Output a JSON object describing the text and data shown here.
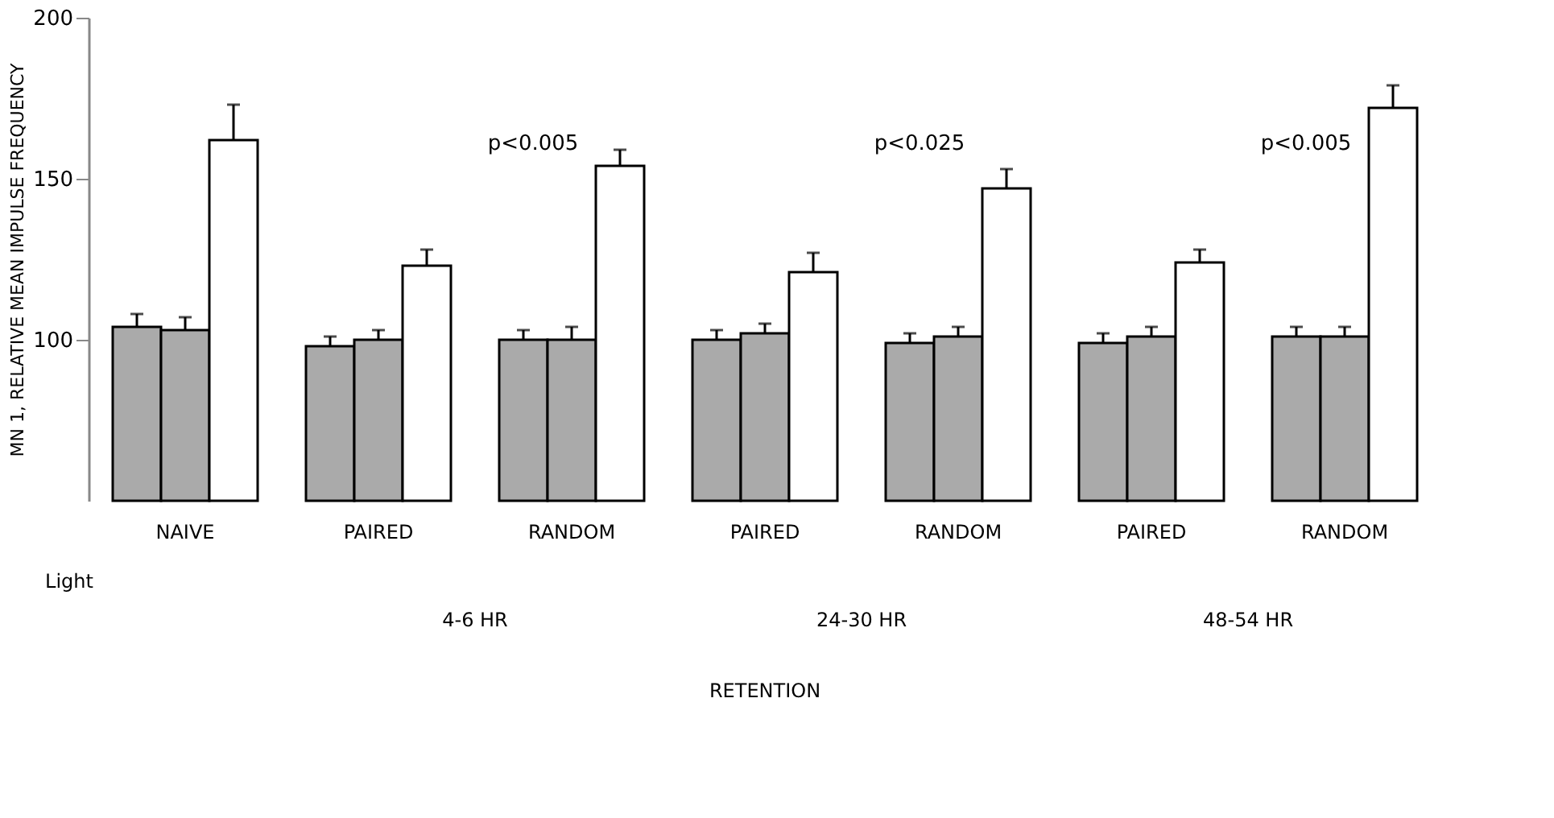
{
  "chart_data": {
    "type": "bar",
    "ylabel": "MN 1, RELATIVE MEAN IMPULSE FREQUENCY",
    "categories": [
      "NAIVE",
      "PAIRED",
      "RANDOM",
      "PAIRED",
      "RANDOM",
      "PAIRED",
      "RANDOM"
    ],
    "series": [
      {
        "color": "#aaaaaa",
        "values": [
          104,
          98,
          100,
          100,
          99,
          99,
          101
        ],
        "errors": [
          4,
          3,
          3,
          3,
          3,
          3,
          3
        ]
      },
      {
        "color": "#aaaaaa",
        "values": [
          103,
          100,
          100,
          102,
          101,
          101,
          101
        ],
        "errors": [
          4,
          3,
          4,
          3,
          3,
          3,
          3
        ]
      },
      {
        "color": "#ffffff",
        "values": [
          162,
          123,
          154,
          121,
          147,
          124,
          172
        ],
        "errors": [
          11,
          5,
          5,
          6,
          6,
          4,
          7
        ]
      }
    ],
    "ylim": [
      50,
      200
    ],
    "yticks": [
      100,
      150,
      200
    ],
    "grid": false,
    "legend": false,
    "annotations": [
      "p<0.005",
      "p<0.025",
      "p<0.005",
      "Light",
      "4-6 HR",
      "24-30 HR",
      "48-54 HR",
      "RETENTION"
    ]
  }
}
